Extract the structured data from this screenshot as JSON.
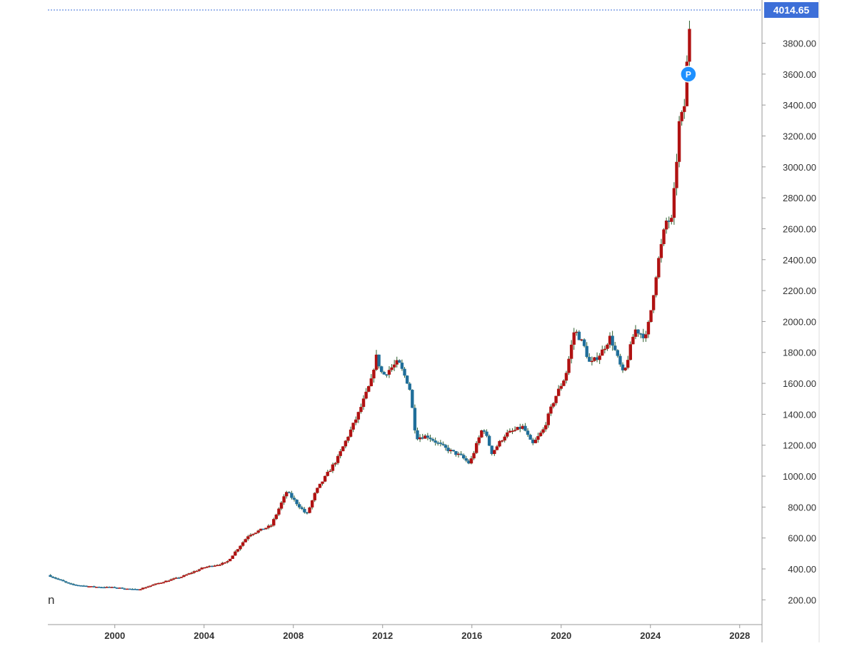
{
  "chart_data": {
    "type": "candlestick",
    "title": "",
    "xlabel": "",
    "ylabel": "",
    "last_price_label": "4014.65",
    "marker_label": "P",
    "left_stub_text": "n",
    "xlim": [
      1997.0,
      2029.0
    ],
    "ylim": [
      40,
      4014.65
    ],
    "y_ticks": [
      "200.00",
      "400.00",
      "600.00",
      "800.00",
      "1000.00",
      "1200.00",
      "1400.00",
      "1600.00",
      "1800.00",
      "2000.00",
      "2200.00",
      "2400.00",
      "2600.00",
      "2800.00",
      "3000.00",
      "3200.00",
      "3400.00",
      "3600.00",
      "3800.00"
    ],
    "x_ticks": [
      "2000",
      "2004",
      "2008",
      "2012",
      "2016",
      "2020",
      "2024",
      "2028"
    ],
    "colors": {
      "up": "#b01212",
      "down": "#1f6e9a",
      "wick": "#2e5e2e",
      "price_label_bg": "#3d6fd8",
      "marker": "#1e90ff",
      "axis": "#999999",
      "dotted_line": "#3d6fd8"
    },
    "price_path": [
      [
        1997.0,
        360
      ],
      [
        1998.0,
        300
      ],
      [
        1999.0,
        285
      ],
      [
        2000.0,
        280
      ],
      [
        2001.0,
        265
      ],
      [
        2002.0,
        310
      ],
      [
        2003.0,
        350
      ],
      [
        2004.0,
        410
      ],
      [
        2005.0,
        440
      ],
      [
        2006.0,
        620
      ],
      [
        2007.0,
        680
      ],
      [
        2007.7,
        900
      ],
      [
        2008.6,
        750
      ],
      [
        2009.0,
        900
      ],
      [
        2010.0,
        1120
      ],
      [
        2010.9,
        1400
      ],
      [
        2011.5,
        1620
      ],
      [
        2011.7,
        1780
      ],
      [
        2012.0,
        1650
      ],
      [
        2012.7,
        1740
      ],
      [
        2013.2,
        1580
      ],
      [
        2013.5,
        1250
      ],
      [
        2014.0,
        1260
      ],
      [
        2014.8,
        1180
      ],
      [
        2015.5,
        1130
      ],
      [
        2015.9,
        1080
      ],
      [
        2016.5,
        1320
      ],
      [
        2016.9,
        1150
      ],
      [
        2017.5,
        1270
      ],
      [
        2018.3,
        1320
      ],
      [
        2018.7,
        1200
      ],
      [
        2019.2,
        1300
      ],
      [
        2019.7,
        1500
      ],
      [
        2020.2,
        1650
      ],
      [
        2020.6,
        1950
      ],
      [
        2021.0,
        1850
      ],
      [
        2021.3,
        1720
      ],
      [
        2021.8,
        1800
      ],
      [
        2022.2,
        1900
      ],
      [
        2022.8,
        1650
      ],
      [
        2023.3,
        1950
      ],
      [
        2023.8,
        1900
      ],
      [
        2024.0,
        2050
      ],
      [
        2024.3,
        2350
      ],
      [
        2024.7,
        2650
      ],
      [
        2024.95,
        2650
      ],
      [
        2025.1,
        2900
      ],
      [
        2025.3,
        3300
      ],
      [
        2025.5,
        3350
      ],
      [
        2025.65,
        3700
      ],
      [
        2025.8,
        4014.65
      ]
    ]
  }
}
